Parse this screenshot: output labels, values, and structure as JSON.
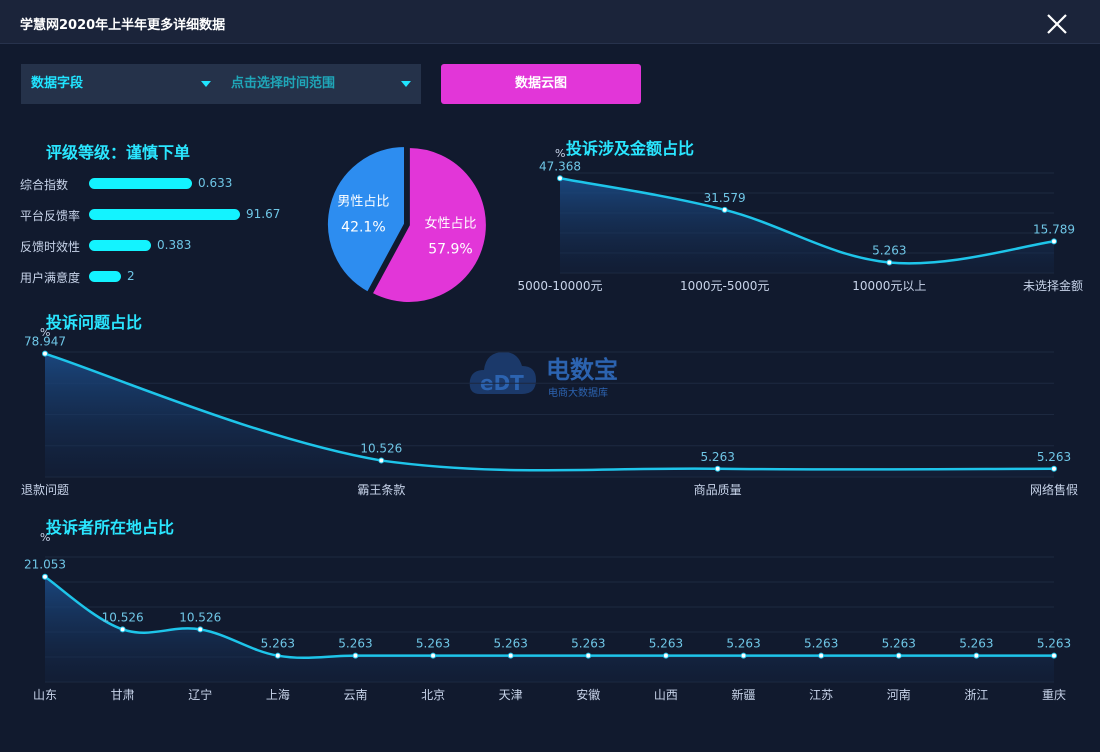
{
  "window": {
    "title": "学慧网2020年上半年更多详细数据"
  },
  "toolbar": {
    "field_select": "数据字段",
    "time_select": "点击选择时间范围",
    "cloud_button": "数据云图"
  },
  "rating": {
    "title": "评级等级：谨慎下单",
    "items": [
      {
        "label": "综合指数",
        "value": 0.633
      },
      {
        "label": "平台反馈率",
        "value": 91.67
      },
      {
        "label": "反馈时效性",
        "value": 0.383
      },
      {
        "label": "用户满意度",
        "value": 2
      }
    ]
  },
  "chart_data": [
    {
      "type": "pie",
      "slices": [
        {
          "label": "男性占比",
          "value": 42.1,
          "display": "42.1%",
          "color": "#2d8df0"
        },
        {
          "label": "女性占比",
          "value": 57.9,
          "display": "57.9%",
          "color": "#e236d8"
        }
      ]
    },
    {
      "type": "area",
      "title": "投诉涉及金额占比",
      "ylabel": "%",
      "categories": [
        "5000-10000元",
        "1000元-5000元",
        "10000元以上",
        "未选择金额"
      ],
      "values": [
        47.368,
        31.579,
        5.263,
        15.789
      ],
      "value_labels": [
        "47.368",
        "31.579",
        "5.263",
        "15.789"
      ],
      "ylim": [
        0,
        50
      ]
    },
    {
      "type": "area",
      "title": "投诉问题占比",
      "ylabel": "%",
      "categories": [
        "退款问题",
        "霸王条款",
        "商品质量",
        "网络售假"
      ],
      "values": [
        78.947,
        10.526,
        5.263,
        5.263
      ],
      "value_labels": [
        "78.947",
        "10.526",
        "5.263",
        "5.263"
      ],
      "ylim": [
        0,
        80
      ]
    },
    {
      "type": "area",
      "title": "投诉者所在地占比",
      "ylabel": "%",
      "categories": [
        "山东",
        "甘肃",
        "辽宁",
        "上海",
        "云南",
        "北京",
        "天津",
        "安徽",
        "山西",
        "新疆",
        "江苏",
        "河南",
        "浙江",
        "重庆"
      ],
      "values": [
        21.053,
        10.526,
        10.526,
        5.263,
        5.263,
        5.263,
        5.263,
        5.263,
        5.263,
        5.263,
        5.263,
        5.263,
        5.263,
        5.263
      ],
      "value_labels": [
        "21.053",
        "10.526",
        "10.526",
        "5.263",
        "5.263",
        "5.263",
        "5.263",
        "5.263",
        "5.263",
        "5.263",
        "5.263",
        "5.263",
        "5.263",
        "5.263"
      ],
      "ylim": [
        0,
        25
      ]
    }
  ],
  "watermark": {
    "logo_text": "eDT",
    "brand": "电数宝",
    "tagline": "电商大数据库"
  }
}
